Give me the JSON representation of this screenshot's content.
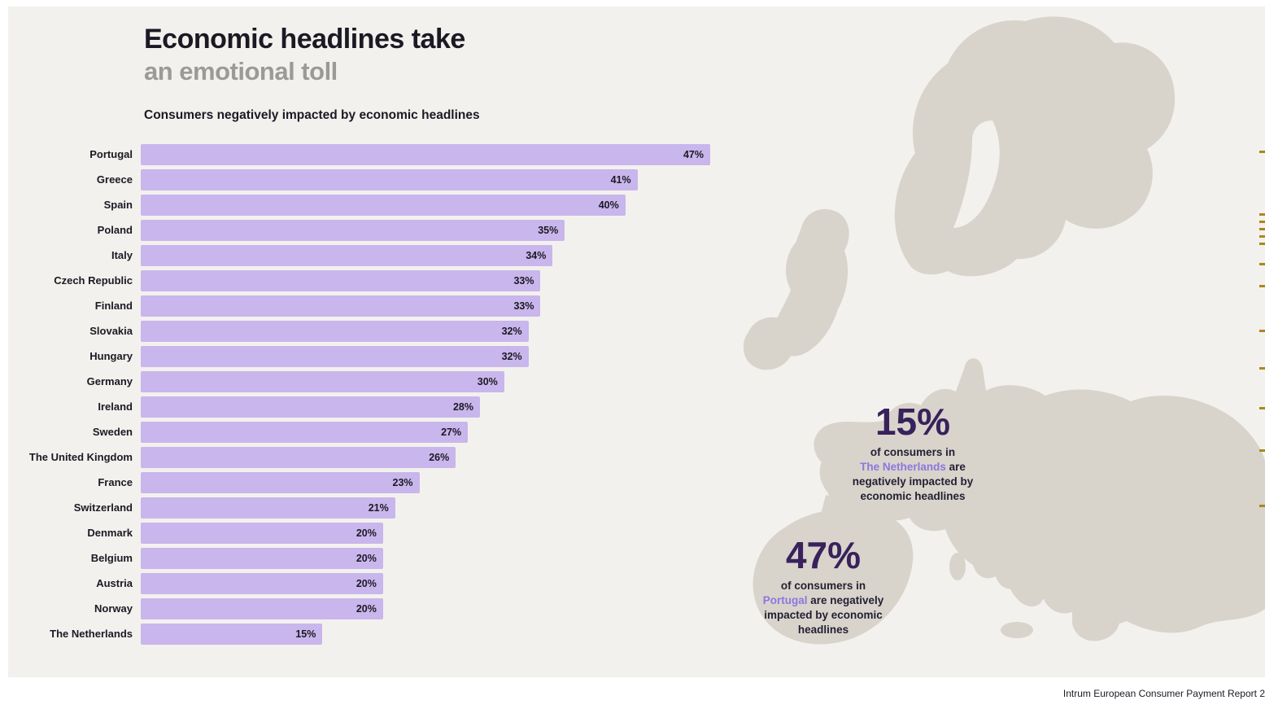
{
  "header": {
    "title_line1": "Economic headlines take",
    "title_line2": "an emotional toll",
    "chart_subtitle": "Consumers negatively impacted by economic headlines"
  },
  "chart_data": {
    "type": "bar",
    "orientation": "horizontal",
    "title": "Consumers negatively impacted by economic headlines",
    "categories": [
      "Portugal",
      "Greece",
      "Spain",
      "Poland",
      "Italy",
      "Czech Republic",
      "Finland",
      "Slovakia",
      "Hungary",
      "Germany",
      "Ireland",
      "Sweden",
      "The United Kingdom",
      "France",
      "Switzerland",
      "Denmark",
      "Belgium",
      "Austria",
      "Norway",
      "The Netherlands"
    ],
    "values": [
      47,
      41,
      40,
      35,
      34,
      33,
      33,
      32,
      32,
      30,
      28,
      27,
      26,
      23,
      21,
      20,
      20,
      20,
      20,
      15
    ],
    "value_suffix": "%",
    "xlim": [
      0,
      47
    ],
    "bar_color": "#c9b6ec",
    "grid": false,
    "legend": false
  },
  "callouts": [
    {
      "stat": "15%",
      "lines": [
        [
          {
            "text": "of consumers in"
          }
        ],
        [
          {
            "text": "The Netherlands",
            "highlight": true
          },
          {
            "text": " are"
          }
        ],
        [
          {
            "text": "negatively impacted by"
          }
        ],
        [
          {
            "text": "economic headlines"
          }
        ]
      ]
    },
    {
      "stat": "47%",
      "lines": [
        [
          {
            "text": "of consumers in"
          }
        ],
        [
          {
            "text": "Portugal",
            "highlight": true
          },
          {
            "text": " are negatively"
          }
        ],
        [
          {
            "text": "impacted by economic"
          }
        ],
        [
          {
            "text": "headlines"
          }
        ]
      ]
    }
  ],
  "footer": {
    "source": "Intrum European Consumer Payment Report 2"
  },
  "colors": {
    "background": "#f3f1ed",
    "frame": "#ffffff",
    "bar": "#c9b6ec",
    "map": "#d8d4cb",
    "title": "#1b1923",
    "title_muted": "#9c9a97",
    "stat": "#38215c",
    "highlight": "#8d76e0",
    "edge_mark": "#a8891c"
  },
  "decor": {
    "edge_marks_y": [
      185,
      262,
      271,
      280,
      289,
      298,
      323,
      350,
      405,
      451,
      500,
      552,
      620
    ]
  }
}
